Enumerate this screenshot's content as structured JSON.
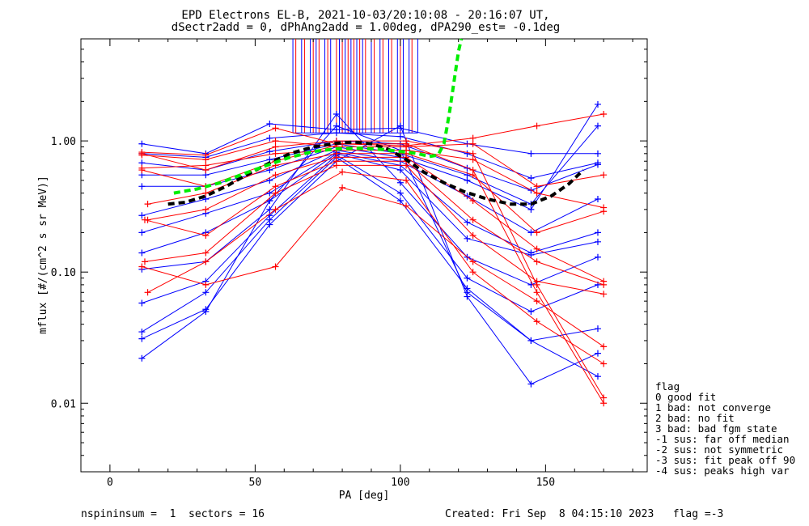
{
  "chart_data": {
    "type": "line",
    "title_line1": "EPD Electrons EL-B, 2021-10-03/20:10:08 - 20:16:07 UT,",
    "title_line2": "dSectr2add = 0, dPhAng2add = 1.00deg, dPA290_est=  -0.1deg",
    "xlabel": "PA [deg]",
    "ylabel": "mflux [#/(cm^2 s sr MeV)]",
    "xlim": [
      -10,
      185
    ],
    "ylim": [
      0.003,
      6.0
    ],
    "yscale": "log",
    "x_ticks": [
      0,
      50,
      100,
      150
    ],
    "x_tick_labels": [
      "0",
      "50",
      "100",
      "150"
    ],
    "y_ticks": [
      0.01,
      0.1,
      1.0
    ],
    "y_tick_labels": [
      "0.01",
      "0.10",
      "1.00"
    ],
    "grid": false,
    "colors": {
      "blue": "#0000ff",
      "red": "#ff0000",
      "fit_green": "#00ee00",
      "median_black": "#000000"
    },
    "series": [
      {
        "color": "blue",
        "values": [
          [
            11,
            0.95
          ],
          [
            33,
            0.8
          ],
          [
            55,
            1.35
          ],
          [
            78,
            1.22
          ],
          [
            100,
            1.25
          ],
          [
            123,
            0.95
          ],
          [
            145,
            0.8
          ],
          [
            168,
            0.8
          ]
        ]
      },
      {
        "color": "blue",
        "values": [
          [
            11,
            0.8
          ],
          [
            33,
            0.75
          ],
          [
            55,
            1.05
          ],
          [
            78,
            1.15
          ],
          [
            100,
            1.08
          ],
          [
            123,
            0.8
          ],
          [
            145,
            0.52
          ],
          [
            168,
            0.68
          ]
        ]
      },
      {
        "color": "blue",
        "values": [
          [
            11,
            0.68
          ],
          [
            33,
            0.6
          ],
          [
            55,
            0.83
          ],
          [
            78,
            1.0
          ],
          [
            100,
            0.95
          ],
          [
            123,
            0.62
          ],
          [
            145,
            0.42
          ],
          [
            168,
            0.66
          ]
        ]
      },
      {
        "color": "blue",
        "values": [
          [
            11,
            0.55
          ],
          [
            33,
            0.55
          ],
          [
            55,
            0.72
          ],
          [
            78,
            0.95
          ],
          [
            100,
            0.8
          ],
          [
            123,
            0.55
          ],
          [
            145,
            0.33
          ],
          [
            168,
            1.3
          ]
        ]
      },
      {
        "color": "blue",
        "values": [
          [
            11,
            0.45
          ],
          [
            33,
            0.45
          ],
          [
            55,
            0.6
          ],
          [
            78,
            0.9
          ],
          [
            100,
            0.75
          ],
          [
            123,
            0.5
          ],
          [
            145,
            0.3
          ],
          [
            168,
            1.9
          ]
        ]
      },
      {
        "color": "blue",
        "values": [
          [
            11,
            0.27
          ],
          [
            33,
            0.36
          ],
          [
            55,
            0.5
          ],
          [
            78,
            0.85
          ],
          [
            100,
            0.7
          ],
          [
            123,
            0.38
          ],
          [
            145,
            0.2
          ],
          [
            168,
            0.36
          ]
        ]
      },
      {
        "color": "blue",
        "values": [
          [
            11,
            0.2
          ],
          [
            33,
            0.28
          ],
          [
            55,
            0.4
          ],
          [
            78,
            0.82
          ],
          [
            100,
            0.65
          ],
          [
            123,
            0.24
          ],
          [
            145,
            0.14
          ],
          [
            168,
            0.2
          ]
        ]
      },
      {
        "color": "blue",
        "values": [
          [
            11,
            0.14
          ],
          [
            33,
            0.2
          ],
          [
            55,
            0.35
          ],
          [
            78,
            0.8
          ],
          [
            100,
            0.6
          ],
          [
            123,
            0.18
          ],
          [
            145,
            0.135
          ],
          [
            168,
            0.17
          ]
        ]
      },
      {
        "color": "blue",
        "values": [
          [
            11,
            0.105
          ],
          [
            33,
            0.12
          ],
          [
            55,
            0.3
          ],
          [
            78,
            1.6
          ],
          [
            100,
            0.48
          ],
          [
            123,
            0.13
          ],
          [
            145,
            0.08
          ],
          [
            168,
            0.13
          ]
        ]
      },
      {
        "color": "blue",
        "values": [
          [
            11,
            0.058
          ],
          [
            33,
            0.085
          ],
          [
            55,
            0.27
          ],
          [
            78,
            0.78
          ],
          [
            100,
            0.4
          ],
          [
            123,
            0.09
          ],
          [
            145,
            0.05
          ],
          [
            168,
            0.08
          ]
        ]
      },
      {
        "color": "blue",
        "values": [
          [
            11,
            0.035
          ],
          [
            33,
            0.07
          ],
          [
            55,
            0.25
          ],
          [
            78,
            0.75
          ],
          [
            100,
            0.35
          ],
          [
            123,
            0.075
          ],
          [
            145,
            0.03
          ],
          [
            168,
            0.037
          ]
        ]
      },
      {
        "color": "blue",
        "values": [
          [
            11,
            0.031
          ],
          [
            33,
            0.052
          ],
          [
            55,
            0.23
          ],
          [
            78,
            0.7
          ],
          [
            100,
            1.3
          ],
          [
            123,
            0.065
          ],
          [
            145,
            0.014
          ],
          [
            168,
            0.024
          ]
        ]
      },
      {
        "color": "blue",
        "values": [
          [
            11,
            0.022
          ],
          [
            33,
            0.05
          ],
          [
            55,
            0.35
          ],
          [
            78,
            1.3
          ],
          [
            100,
            0.85
          ],
          [
            123,
            0.07
          ],
          [
            145,
            0.03
          ],
          [
            168,
            0.016
          ]
        ]
      },
      {
        "color": "red",
        "values": [
          [
            11,
            0.82
          ],
          [
            33,
            0.78
          ],
          [
            57,
            1.25
          ],
          [
            78,
            0.95
          ],
          [
            102,
            0.92
          ],
          [
            125,
            1.05
          ],
          [
            147,
            1.3
          ],
          [
            170,
            1.6
          ]
        ]
      },
      {
        "color": "red",
        "values": [
          [
            11,
            0.78
          ],
          [
            33,
            0.72
          ],
          [
            57,
            1.0
          ],
          [
            78,
            0.9
          ],
          [
            102,
            0.9
          ],
          [
            125,
            0.95
          ],
          [
            147,
            0.45
          ],
          [
            170,
            0.55
          ]
        ]
      },
      {
        "color": "red",
        "values": [
          [
            11,
            0.62
          ],
          [
            33,
            0.65
          ],
          [
            57,
            0.8
          ],
          [
            78,
            0.85
          ],
          [
            102,
            0.85
          ],
          [
            125,
            0.72
          ],
          [
            147,
            0.4
          ],
          [
            170,
            0.31
          ]
        ]
      },
      {
        "color": "red",
        "values": [
          [
            13,
            0.33
          ],
          [
            33,
            0.4
          ],
          [
            57,
            0.65
          ],
          [
            78,
            0.8
          ],
          [
            102,
            0.8
          ],
          [
            125,
            0.55
          ],
          [
            147,
            0.2
          ],
          [
            170,
            0.29
          ]
        ]
      },
      {
        "color": "red",
        "values": [
          [
            13,
            0.25
          ],
          [
            33,
            0.3
          ],
          [
            57,
            0.55
          ],
          [
            78,
            0.75
          ],
          [
            102,
            0.75
          ],
          [
            125,
            0.35
          ],
          [
            147,
            0.15
          ],
          [
            170,
            0.085
          ]
        ]
      },
      {
        "color": "red",
        "values": [
          [
            12,
            0.25
          ],
          [
            33,
            0.19
          ],
          [
            57,
            0.45
          ],
          [
            78,
            0.7
          ],
          [
            102,
            0.7
          ],
          [
            125,
            0.25
          ],
          [
            147,
            0.12
          ],
          [
            170,
            0.08
          ]
        ]
      },
      {
        "color": "red",
        "values": [
          [
            12,
            0.12
          ],
          [
            33,
            0.14
          ],
          [
            57,
            0.4
          ],
          [
            78,
            0.65
          ],
          [
            102,
            0.65
          ],
          [
            125,
            0.19
          ],
          [
            147,
            0.085
          ],
          [
            170,
            0.068
          ]
        ]
      },
      {
        "color": "red",
        "values": [
          [
            11,
            0.11
          ],
          [
            33,
            0.08
          ],
          [
            57,
            0.11
          ],
          [
            80,
            0.44
          ],
          [
            102,
            0.32
          ],
          [
            125,
            0.12
          ],
          [
            147,
            0.06
          ],
          [
            170,
            0.027
          ]
        ]
      },
      {
        "color": "red",
        "values": [
          [
            13,
            0.07
          ],
          [
            33,
            0.12
          ],
          [
            57,
            0.3
          ],
          [
            80,
            0.58
          ],
          [
            102,
            0.5
          ],
          [
            125,
            0.1
          ],
          [
            147,
            0.042
          ],
          [
            170,
            0.02
          ]
        ]
      },
      {
        "color": "red",
        "values": [
          [
            11,
            0.8
          ],
          [
            33,
            0.6
          ],
          [
            57,
            0.9
          ],
          [
            78,
            1.0
          ],
          [
            102,
            1.0
          ],
          [
            125,
            0.8
          ],
          [
            147,
            0.08
          ],
          [
            170,
            0.011
          ]
        ]
      },
      {
        "color": "red",
        "values": [
          [
            11,
            0.6
          ],
          [
            33,
            0.45
          ],
          [
            57,
            0.7
          ],
          [
            80,
            0.95
          ],
          [
            102,
            0.95
          ],
          [
            125,
            0.6
          ],
          [
            147,
            0.07
          ],
          [
            170,
            0.01
          ]
        ]
      }
    ],
    "saturated_spikes": {
      "blue_x": [
        63,
        66,
        69,
        71,
        74,
        76,
        79,
        81,
        83,
        85,
        87,
        90,
        93,
        96,
        99,
        101,
        103,
        106
      ],
      "red_x": [
        64,
        67,
        70,
        72,
        75,
        78,
        80,
        82,
        84,
        86,
        88,
        91,
        94,
        97,
        100,
        104
      ]
    },
    "median_curve": [
      [
        20,
        0.33
      ],
      [
        26,
        0.34
      ],
      [
        33,
        0.38
      ],
      [
        40,
        0.45
      ],
      [
        47,
        0.55
      ],
      [
        55,
        0.68
      ],
      [
        62,
        0.8
      ],
      [
        70,
        0.9
      ],
      [
        78,
        0.96
      ],
      [
        84,
        0.98
      ],
      [
        90,
        0.95
      ],
      [
        96,
        0.86
      ],
      [
        102,
        0.72
      ],
      [
        108,
        0.58
      ],
      [
        115,
        0.48
      ],
      [
        122,
        0.41
      ],
      [
        130,
        0.36
      ],
      [
        138,
        0.33
      ],
      [
        145,
        0.33
      ],
      [
        152,
        0.38
      ],
      [
        158,
        0.47
      ],
      [
        163,
        0.6
      ]
    ],
    "fit_curve": [
      [
        22,
        0.4
      ],
      [
        30,
        0.43
      ],
      [
        38,
        0.48
      ],
      [
        46,
        0.56
      ],
      [
        54,
        0.65
      ],
      [
        62,
        0.75
      ],
      [
        70,
        0.83
      ],
      [
        78,
        0.87
      ],
      [
        86,
        0.88
      ],
      [
        94,
        0.86
      ],
      [
        100,
        0.83
      ],
      [
        106,
        0.8
      ],
      [
        110,
        0.76
      ],
      [
        113,
        0.78
      ],
      [
        115,
        0.95
      ],
      [
        116,
        1.25
      ],
      [
        117,
        1.7
      ],
      [
        118,
        2.4
      ],
      [
        119,
        3.4
      ],
      [
        120,
        4.8
      ],
      [
        121,
        6.0
      ]
    ],
    "legend": {
      "title": "flag",
      "items": [
        " 0 good fit",
        " 1 bad: not converge",
        " 2 bad: no fit",
        " 3 bad: bad fgm state",
        "-1 sus: far off median",
        "-2 sus: not symmetric",
        "-3 sus: fit peak off 90",
        "-4 sus: peaks high var"
      ]
    }
  },
  "footer": {
    "left": "nspininsum =  1  sectors = 16",
    "right": "Created: Fri Sep  8 04:15:10 2023   flag =-3"
  }
}
